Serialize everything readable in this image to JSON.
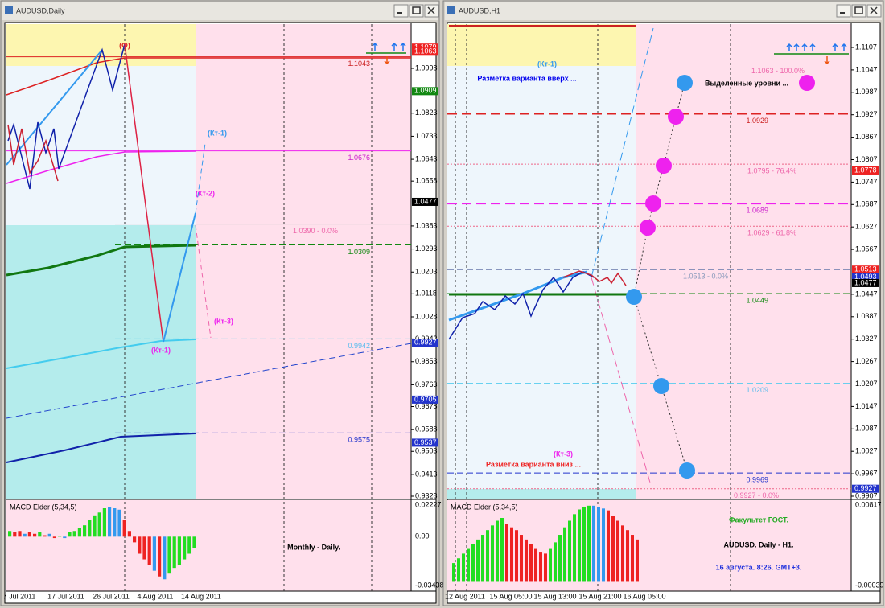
{
  "windows": [
    {
      "title": "AUDUSD,Daily",
      "price_scale": [
        "1.0998",
        "1.0823",
        "1.0733",
        "1.0643",
        "1.0558",
        "1.0383",
        "1.0293",
        "1.0203",
        "1.0118",
        "1.0028",
        "0.9942",
        "0.9853",
        "0.9763",
        "0.9678",
        "0.9588",
        "0.9503",
        "0.9413",
        "0.9328"
      ],
      "price_boxes": [
        "1.1079",
        "1.1063",
        "1.0909",
        "1.0477",
        "0.9927",
        "0.9705",
        "0.9537"
      ],
      "level_labels": [
        "1.1043",
        "1.0676",
        "1.0390 - 0.0%",
        "1.0309",
        "0.9942",
        "0.9575"
      ],
      "annotations": [
        "(Ф)",
        "(Кт-1)",
        "(Кт-2)",
        "(Кт-3)",
        "(Кт-1)"
      ],
      "indicator": {
        "name": "MACD Elder (5,34,5)",
        "scale": [
          "0.02227",
          "0.00",
          "-0.03438"
        ],
        "values": [
          0.004,
          0.003,
          0.004,
          0.002,
          0.003,
          0.002,
          0.003,
          0.001,
          0.002,
          -0.001,
          0.0005,
          -0.001,
          0.003,
          0.004,
          0.006,
          0.008,
          0.012,
          0.015,
          0.017,
          0.02,
          0.021,
          0.02,
          0.019,
          0.012,
          0.004,
          -0.004,
          -0.012,
          -0.016,
          -0.02,
          -0.024,
          -0.028,
          -0.03,
          -0.026,
          -0.022,
          -0.02,
          -0.016,
          -0.012,
          -0.008
        ],
        "colors": [
          "#22dd22",
          "#ee2222",
          "#ee2222",
          "#3399ee",
          "#ee2222",
          "#ee2222",
          "#22dd22",
          "#ee2222",
          "#3399ee",
          "#ee2222",
          "#22dd22",
          "#3399ee",
          "#22dd22",
          "#22dd22",
          "#22dd22",
          "#22dd22",
          "#22dd22",
          "#22dd22",
          "#22dd22",
          "#22dd22",
          "#3399ee",
          "#3399ee",
          "#3399ee",
          "#ee2222",
          "#ee2222",
          "#ee2222",
          "#ee2222",
          "#ee2222",
          "#ee2222",
          "#3399ee",
          "#ee2222",
          "#3399ee",
          "#22dd22",
          "#22dd22",
          "#22dd22",
          "#22dd22",
          "#22dd22",
          "#22dd22"
        ]
      },
      "time_labels": [
        "7 Jul 2011",
        "17 Jul 2011",
        "26 Jul 2011",
        "4 Aug 2011",
        "14 Aug 2011"
      ],
      "caption": [
        "Monthly - Daily."
      ]
    },
    {
      "title": "AUDUSD,H1",
      "price_scale": [
        "1.1107",
        "1.1047",
        "1.0987",
        "1.0927",
        "1.0867",
        "1.0807",
        "1.0747",
        "1.0687",
        "1.0627",
        "1.0567",
        "1.0447",
        "1.0387",
        "1.0327",
        "1.0267",
        "1.0207",
        "1.0147",
        "1.0087",
        "1.0027",
        "0.9967",
        "0.9907"
      ],
      "price_boxes": [
        "1.0778",
        "1.0513",
        "1.0493",
        "1.0477",
        "0.9927"
      ],
      "level_labels": [
        "1.1063 - 100.0%",
        "1.0929",
        "1.0795 - 76.4%",
        "1.0689",
        "1.0629 - 61.8%",
        "1.0513 - 0.0%",
        "1.0449",
        "1.0209",
        "0.9969",
        "0.9927 - 0.0%"
      ],
      "annotations": [
        "(Кт-1)",
        "Разметка варианта вверх ...",
        "Выделенные уровни ...",
        "(Кт-3)",
        "Разметка варианта вниз ..."
      ],
      "indicator": {
        "name": "MACD Elder (5,34,5)",
        "scale": [
          "0.00817",
          "-0.00039"
        ],
        "values": [
          0.002,
          0.0025,
          0.003,
          0.0035,
          0.004,
          0.0045,
          0.005,
          0.0055,
          0.006,
          0.0065,
          0.0068,
          0.0062,
          0.0058,
          0.0055,
          0.005,
          0.0045,
          0.004,
          0.0035,
          0.0032,
          0.003,
          0.0035,
          0.0042,
          0.005,
          0.0058,
          0.0065,
          0.0072,
          0.0077,
          0.008,
          0.0081,
          0.0081,
          0.008,
          0.0078,
          0.0076,
          0.007,
          0.0065,
          0.006,
          0.0055,
          0.005,
          0.0045
        ],
        "colors": [
          "#22dd22",
          "#22dd22",
          "#22dd22",
          "#22dd22",
          "#22dd22",
          "#22dd22",
          "#22dd22",
          "#22dd22",
          "#22dd22",
          "#22dd22",
          "#22dd22",
          "#ee2222",
          "#ee2222",
          "#ee2222",
          "#ee2222",
          "#ee2222",
          "#ee2222",
          "#ee2222",
          "#ee2222",
          "#ee2222",
          "#22dd22",
          "#22dd22",
          "#22dd22",
          "#22dd22",
          "#22dd22",
          "#22dd22",
          "#22dd22",
          "#22dd22",
          "#22dd22",
          "#3399ee",
          "#3399ee",
          "#3399ee",
          "#ee2222",
          "#ee2222",
          "#ee2222",
          "#ee2222",
          "#ee2222",
          "#ee2222",
          "#ee2222"
        ]
      },
      "time_labels": [
        "12 Aug 2011",
        "15 Aug 05:00",
        "15 Aug 13:00",
        "15 Aug 21:00",
        "16 Aug 05:00"
      ],
      "caption": [
        "Факультет ГОСТ.",
        "AUDUSD. Daily - H1.",
        "16 августа. 8:26. GMT+3."
      ]
    }
  ]
}
